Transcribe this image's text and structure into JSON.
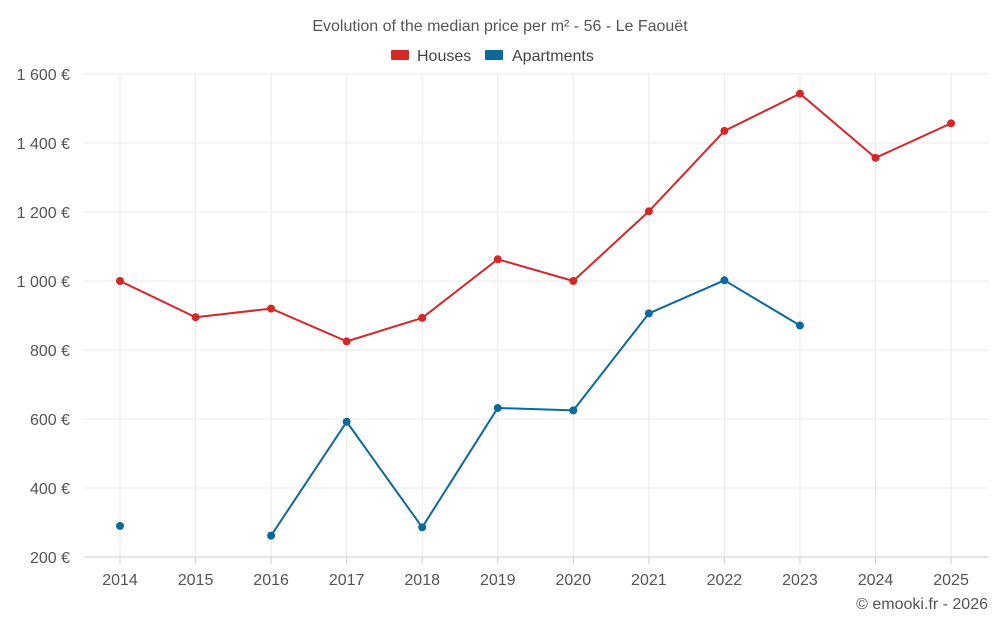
{
  "chart_data": {
    "type": "line",
    "title": "Evolution of the median price per m² - 56 - Le Faouët",
    "xlabel": "",
    "ylabel": "",
    "categories": [
      "2014",
      "2015",
      "2016",
      "2017",
      "2018",
      "2019",
      "2020",
      "2021",
      "2022",
      "2023",
      "2024",
      "2025"
    ],
    "ylim": [
      200,
      1600
    ],
    "yticks": [
      200,
      400,
      600,
      800,
      1000,
      1200,
      1400,
      1600
    ],
    "ytick_labels": [
      "200 €",
      "400 €",
      "600 €",
      "800 €",
      "1 000 €",
      "1 200 €",
      "1 400 €",
      "1 600 €"
    ],
    "grid": true,
    "legend_position": "top-center",
    "series": [
      {
        "name": "Houses",
        "color": "#d62728",
        "values": [
          1000,
          895,
          920,
          825,
          893,
          1063,
          1000,
          1202,
          1435,
          1543,
          1357,
          1457
        ]
      },
      {
        "name": "Apartments",
        "color": "#0a6a9a",
        "values": [
          290,
          null,
          262,
          592,
          286,
          632,
          625,
          906,
          1002,
          871,
          null,
          null
        ]
      }
    ],
    "credit": "© emooki.fr - 2026"
  }
}
